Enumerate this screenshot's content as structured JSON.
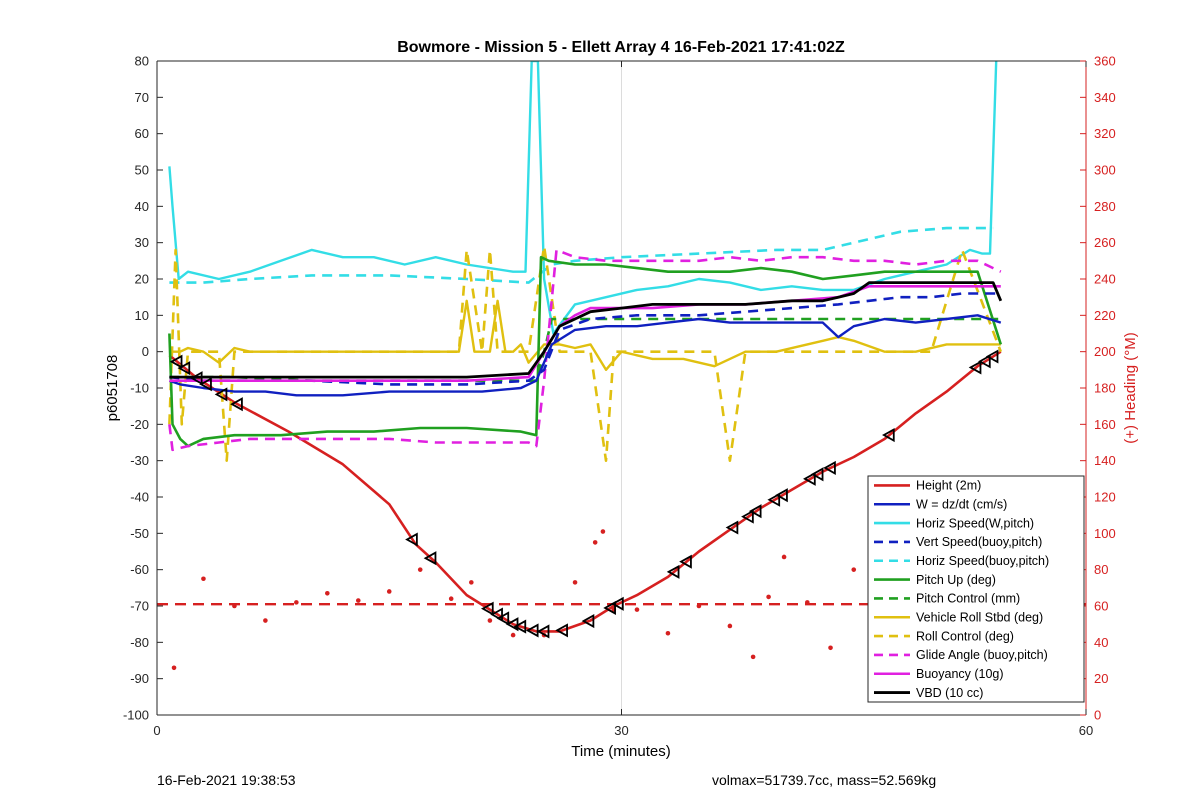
{
  "chart_data": {
    "type": "line",
    "title": "Bowmore - Mission 5 - Ellett Array 4 16-Feb-2021 17:41:02Z",
    "xlabel": "Time (minutes)",
    "ylabel": "p6051708",
    "y2label": "(+) Heading (°M)",
    "xlim": [
      0,
      60
    ],
    "ylim": [
      -100,
      80
    ],
    "y2lim": [
      0,
      360
    ],
    "x_ticks": [
      0,
      30,
      60
    ],
    "y_ticks": [
      -100,
      -90,
      -80,
      -70,
      -60,
      -50,
      -40,
      -30,
      -20,
      -10,
      0,
      10,
      20,
      30,
      40,
      50,
      60,
      70,
      80
    ],
    "y2_ticks": [
      0,
      20,
      40,
      60,
      80,
      100,
      120,
      140,
      160,
      180,
      200,
      220,
      240,
      260,
      280,
      300,
      320,
      340,
      360
    ],
    "grid": "x-only",
    "legend_position": "bottom-right",
    "colors": {
      "height": "#d62020",
      "w": "#1020c0",
      "horiz": "#33dde6",
      "pitch_up": "#20a020",
      "roll": "#e0c010",
      "glide": "#e020e0",
      "buoyancy": "#e020e0",
      "vbd": "#000000",
      "heading_axis": "#d62020"
    },
    "series": [
      {
        "name": "Height (2m)",
        "color": "#d62020",
        "dash": "solid",
        "width": 2.6,
        "x": [
          0.8,
          2.5,
          5,
          8.5,
          12,
          15,
          16.7,
          18,
          20,
          21.5,
          23,
          24.5,
          26,
          28,
          29.5,
          31,
          33,
          35,
          37,
          39,
          41,
          43,
          45,
          47,
          49,
          51,
          53,
          54.5
        ],
        "y": [
          -1,
          -7,
          -14,
          -22,
          -31,
          -42,
          -53,
          -58,
          -67,
          -71,
          -75,
          -77,
          -77,
          -74,
          -70,
          -67,
          -62,
          -55,
          -49,
          -43,
          -38,
          -33,
          -29,
          -24,
          -17,
          -11,
          -4,
          0
        ]
      },
      {
        "name": "W = dz/dt (cm/s)",
        "color": "#1020c0",
        "dash": "solid",
        "width": 2.4,
        "x": [
          0.8,
          1.5,
          3,
          5,
          7,
          9,
          12,
          15,
          18,
          21,
          23.5,
          24.5,
          25.5,
          27,
          29,
          31,
          33,
          35,
          37,
          39,
          41,
          43,
          44,
          45,
          47,
          49,
          51,
          53,
          54.5
        ],
        "y": [
          -8,
          -9,
          -10,
          -11,
          -11,
          -12,
          -12,
          -11,
          -11,
          -11,
          -10,
          -8,
          2,
          6,
          7,
          7,
          8,
          9,
          8,
          8,
          8,
          8,
          4,
          7,
          9,
          8,
          9,
          10,
          8
        ]
      },
      {
        "name": "Horiz Speed(W,pitch)",
        "color": "#33dde6",
        "dash": "solid",
        "width": 2.4,
        "x": [
          0.8,
          1,
          1.4,
          2,
          4,
          6,
          8,
          10,
          12,
          14,
          16,
          18,
          20,
          23,
          23.8,
          24.2,
          24.6,
          25,
          25.6,
          27,
          29,
          31,
          33,
          35,
          37,
          39,
          41,
          43,
          45,
          47,
          49,
          51,
          52.5,
          53.3,
          53.8,
          54.2
        ],
        "y": [
          51,
          40,
          20,
          22,
          20,
          22,
          25,
          28,
          26,
          26,
          24,
          26,
          24,
          22,
          22,
          80,
          80,
          20,
          5,
          13,
          15,
          17,
          18,
          20,
          19,
          17,
          18,
          17,
          17,
          20,
          22,
          24,
          28,
          27,
          27,
          80
        ]
      },
      {
        "name": "Vert Speed(buoy,pitch)",
        "color": "#1020c0",
        "dash": "dashed",
        "width": 2.6,
        "x": [
          0.8,
          3,
          6,
          10,
          15,
          20,
          24,
          25,
          26,
          28,
          31,
          35,
          38,
          41,
          44,
          46,
          48,
          50,
          52,
          54.5
        ],
        "y": [
          -7,
          -8,
          -8,
          -8,
          -9,
          -9,
          -8,
          -5,
          6,
          9,
          10,
          10,
          11,
          12,
          13,
          14,
          15,
          15,
          16,
          16
        ]
      },
      {
        "name": "Horiz Speed(buoy,pitch)",
        "color": "#33dde6",
        "dash": "dashed",
        "width": 2.6,
        "x": [
          0.8,
          3,
          6,
          10,
          15,
          20,
          24,
          25.5,
          27,
          30,
          35,
          40,
          43,
          45,
          48,
          51,
          54
        ],
        "y": [
          19,
          19,
          20,
          21,
          21,
          20,
          19,
          24,
          25,
          26,
          27,
          28,
          28,
          30,
          33,
          34,
          34
        ]
      },
      {
        "name": "Pitch Up (deg)",
        "color": "#20a020",
        "dash": "solid",
        "width": 2.6,
        "x": [
          0.8,
          1,
          1.5,
          2,
          3,
          5,
          8,
          11,
          14,
          17,
          20,
          23.5,
          24.5,
          24.8,
          25.3,
          27,
          29,
          31,
          33,
          35,
          37,
          39,
          41,
          43,
          45,
          47,
          49,
          51,
          53,
          54.5
        ],
        "y": [
          5,
          -20,
          -24,
          -26,
          -24,
          -23,
          -23,
          -22,
          -22,
          -21,
          -21,
          -22,
          -23,
          26,
          25,
          24,
          24,
          23,
          22,
          22,
          22,
          23,
          22,
          20,
          21,
          22,
          22,
          22,
          22,
          2
        ]
      },
      {
        "name": "Pitch Control (mm)",
        "color": "#20a020",
        "dash": "dashed",
        "width": 2.6,
        "x": [
          0.8,
          5,
          10,
          15,
          20,
          24.5,
          25,
          25.5,
          30,
          35,
          40,
          45,
          50,
          54.5
        ],
        "y": [
          -7,
          -7,
          -8,
          -8,
          -8,
          -8,
          0,
          9,
          9,
          9,
          9,
          9,
          9,
          9
        ]
      },
      {
        "name": "Vehicle Roll Stbd (deg)",
        "color": "#e0c010",
        "dash": "solid",
        "width": 2.4,
        "x": [
          0.8,
          1.5,
          2,
          3,
          4,
          5,
          6,
          8,
          10,
          12,
          14,
          16,
          18,
          19.5,
          20,
          20.5,
          21.5,
          22,
          22.5,
          23,
          23.5,
          24,
          25,
          26,
          27,
          28,
          29,
          30,
          32,
          34,
          36,
          38,
          40,
          42,
          43,
          44,
          45,
          47,
          49,
          51,
          53,
          54.5
        ],
        "y": [
          0,
          0,
          1,
          0,
          -3,
          1,
          0,
          0,
          0,
          0,
          0,
          0,
          0,
          0,
          14,
          0,
          0,
          14,
          0,
          0,
          2,
          -3,
          2,
          2,
          1,
          2,
          -5,
          0,
          -2,
          -2,
          -4,
          0,
          0,
          2,
          3,
          4,
          3,
          0,
          0,
          2,
          2,
          2
        ]
      },
      {
        "name": "Roll Control (deg)",
        "color": "#e0c010",
        "dash": "dashed",
        "width": 2.6,
        "x": [
          0.8,
          1.2,
          1.6,
          2,
          3,
          4,
          4.5,
          5,
          6,
          8,
          10,
          12,
          14,
          16,
          18,
          19.5,
          20,
          21,
          21.5,
          22,
          23,
          24,
          25,
          26,
          27,
          28,
          29,
          29.5,
          30,
          31,
          32,
          34,
          36,
          37,
          38,
          39,
          40,
          42,
          44,
          46,
          48,
          50,
          52,
          54.5
        ],
        "y": [
          -20,
          28,
          -20,
          0,
          0,
          0,
          -30,
          0,
          0,
          0,
          0,
          0,
          0,
          0,
          0,
          0,
          28,
          0,
          28,
          0,
          0,
          0,
          29,
          0,
          0,
          0,
          -30,
          0,
          0,
          0,
          0,
          0,
          0,
          -30,
          0,
          0,
          0,
          0,
          0,
          0,
          0,
          0,
          28,
          0
        ]
      },
      {
        "name": "Glide Angle (buoy,pitch)",
        "color": "#e020e0",
        "dash": "dashed",
        "width": 2.6,
        "x": [
          0.8,
          1,
          2,
          4,
          6,
          9,
          12,
          15,
          18,
          21,
          24,
          24.5,
          25,
          25.8,
          27,
          29,
          31,
          33,
          35,
          37,
          39,
          41,
          43,
          45,
          47,
          49,
          51,
          53,
          54.5
        ],
        "y": [
          -20,
          -27,
          -26,
          -25,
          -24,
          -24,
          -24,
          -24,
          -25,
          -25,
          -25,
          -26,
          -8,
          28,
          26,
          25,
          25,
          25,
          25,
          26,
          25,
          26,
          26,
          25,
          25,
          24,
          25,
          25,
          22
        ]
      },
      {
        "name": "Buoyancy (10g)",
        "color": "#e020e0",
        "dash": "solid",
        "width": 2.6,
        "x": [
          0.8,
          5,
          10,
          15,
          20,
          24,
          25,
          26,
          27,
          28,
          30,
          32,
          35,
          38,
          41,
          44,
          46,
          50,
          54.5
        ],
        "y": [
          -8,
          -8,
          -8,
          -8,
          -8,
          -7,
          0,
          7,
          10,
          12,
          12,
          12,
          13,
          13,
          14,
          15,
          18,
          18,
          18
        ]
      },
      {
        "name": "VBD (10 cc)",
        "color": "#000000",
        "dash": "solid",
        "width": 2.8,
        "x": [
          0.8,
          2,
          5,
          10,
          15,
          20,
          24,
          25,
          26,
          27,
          28,
          30,
          32,
          35,
          38,
          41,
          43,
          44,
          45,
          46,
          50,
          54,
          54.5
        ],
        "y": [
          -7,
          -7,
          -7,
          -7,
          -7,
          -7,
          -6,
          0,
          7,
          9,
          11,
          12,
          13,
          13,
          13,
          14,
          14,
          15,
          16,
          19,
          19,
          19,
          14
        ]
      }
    ],
    "heading_series": {
      "mean_heading": 61,
      "mean_color": "#d62020",
      "points_x": [
        1.1,
        3,
        5,
        7,
        9,
        11,
        13,
        15,
        17,
        19,
        20.3,
        21.5,
        23,
        25,
        27,
        28.3,
        28.8,
        29.5,
        31,
        33,
        35,
        37,
        38.5,
        39.5,
        40.5,
        42,
        43.5,
        45,
        47,
        49,
        51,
        53,
        54.5
      ],
      "points_y": [
        26,
        75,
        60,
        52,
        62,
        67,
        63,
        68,
        80,
        64,
        73,
        52,
        44,
        44,
        73,
        95,
        101,
        58,
        58,
        45,
        60,
        49,
        32,
        65,
        87,
        62,
        37,
        80,
        78,
        68,
        61,
        68,
        60
      ]
    },
    "markers": {
      "shape": "triangle",
      "color": "#000000",
      "x": [
        1.3,
        1.8,
        2.6,
        3.2,
        4.2,
        5.2,
        16.5,
        17.7,
        21.4,
        22,
        22.4,
        23,
        23.5,
        24.3,
        25,
        26.2,
        27.9,
        29.3,
        29.8,
        33.4,
        34.2,
        37.2,
        38.2,
        38.7,
        39.9,
        40.4,
        42.2,
        42.7,
        43.5,
        47.3,
        52.9,
        53.5,
        54
      ]
    }
  },
  "footer": {
    "left": "16-Feb-2021 19:38:53",
    "right": "volmax=51739.7cc, mass=52.569kg"
  }
}
